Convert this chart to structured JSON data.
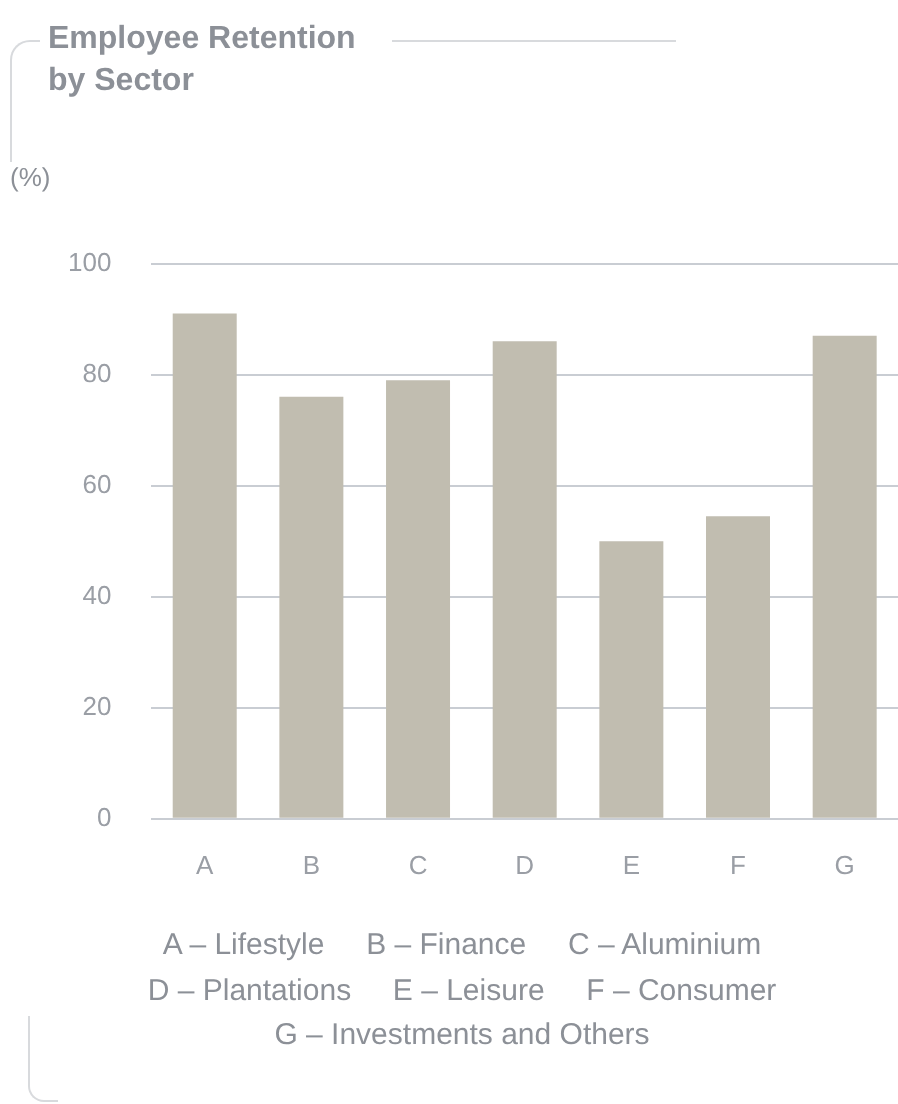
{
  "chart_data": {
    "type": "bar",
    "title": "Employee Retention by Sector",
    "ylabel": "(%)",
    "categories": [
      "A",
      "B",
      "C",
      "D",
      "E",
      "F",
      "G"
    ],
    "values": [
      91,
      76,
      79,
      86,
      50,
      54.5,
      87
    ],
    "color": "#c1bdb0",
    "ylim": [
      0,
      100
    ],
    "yticks": [
      0,
      20,
      40,
      60,
      80,
      100
    ],
    "grid": "y",
    "annotations": [
      "A – Lifestyle     B – Finance     C – Aluminium",
      "D – Plantations     E – Leisure     F – Consumer",
      "G – Investments and Others"
    ]
  }
}
